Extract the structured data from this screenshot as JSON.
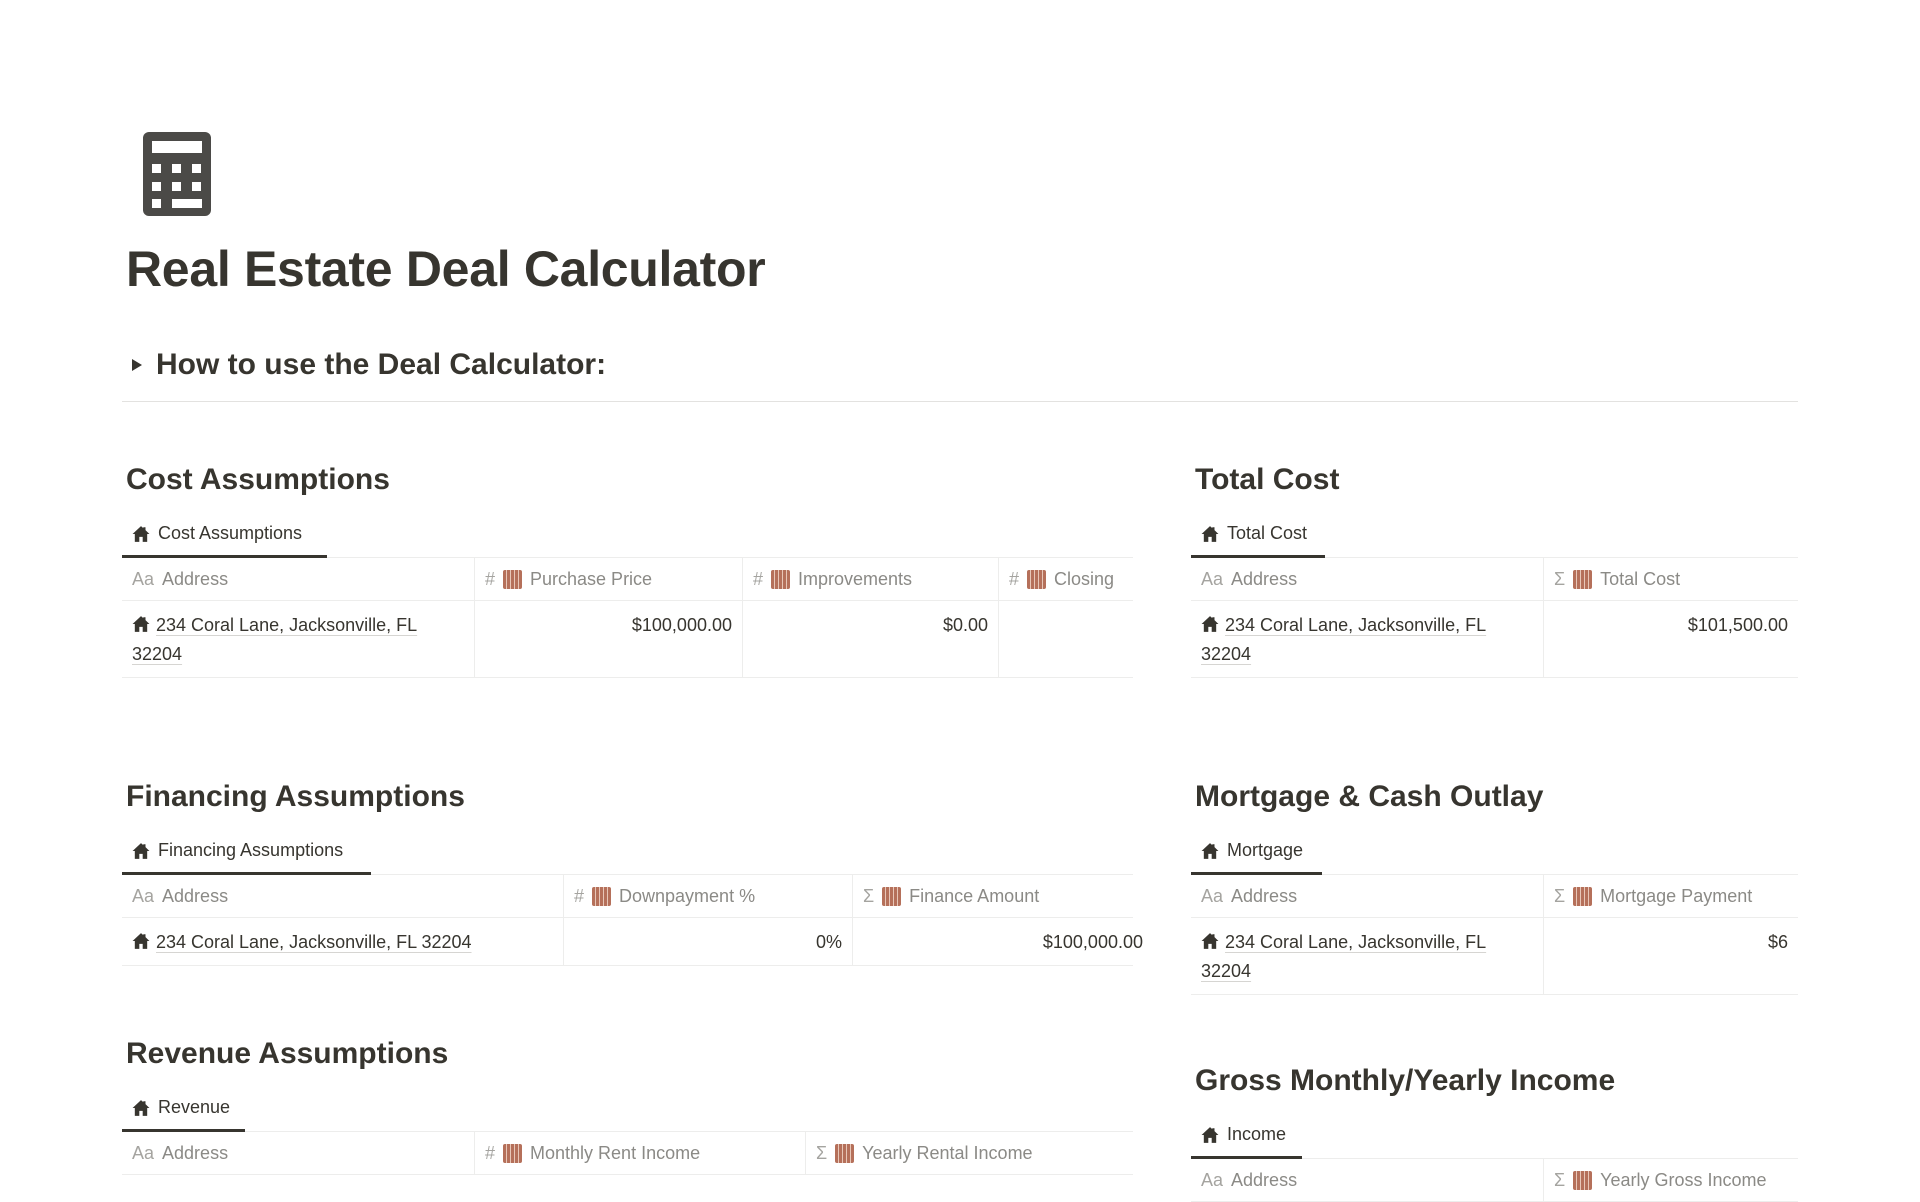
{
  "page": {
    "icon": "calculator-icon",
    "title": "Real Estate Deal Calculator",
    "toggle_label": "How to use the Deal Calculator:"
  },
  "colors": {
    "text": "#37352f",
    "header_text": "#8b8a86",
    "formula_icon": "#b5705a"
  },
  "sections": [
    {
      "id": "cost-assumptions",
      "heading": "Cost Assumptions",
      "tab": "Cost Assumptions",
      "columns": [
        {
          "type_icon": "Aa",
          "label": "Address"
        },
        {
          "type_icon": "#",
          "label": "Purchase Price"
        },
        {
          "type_icon": "#",
          "label": "Improvements"
        },
        {
          "type_icon": "#",
          "label": "Closing"
        }
      ],
      "rows": [
        [
          "234 Coral Lane, Jacksonville, FL 32204",
          "$100,000.00",
          "$0.00",
          ""
        ]
      ]
    },
    {
      "id": "total-cost",
      "heading": "Total Cost",
      "tab": "Total Cost",
      "columns": [
        {
          "type_icon": "Aa",
          "label": "Address"
        },
        {
          "type_icon": "Σ",
          "label": "Total Cost"
        }
      ],
      "rows": [
        [
          "234 Coral Lane, Jacksonville, FL 32204",
          "$101,500.00"
        ]
      ]
    },
    {
      "id": "financing-assumptions",
      "heading": "Financing Assumptions",
      "tab": "Financing Assumptions",
      "columns": [
        {
          "type_icon": "Aa",
          "label": "Address"
        },
        {
          "type_icon": "#",
          "label": "Downpayment %"
        },
        {
          "type_icon": "Σ",
          "label": "Finance Amount"
        }
      ],
      "rows": [
        [
          "234 Coral Lane, Jacksonville, FL 32204",
          "0%",
          "$100,000.00"
        ]
      ]
    },
    {
      "id": "mortgage-cash-outlay",
      "heading": "Mortgage & Cash Outlay",
      "tab": "Mortgage",
      "columns": [
        {
          "type_icon": "Aa",
          "label": "Address"
        },
        {
          "type_icon": "Σ",
          "label": "Mortgage Payment"
        }
      ],
      "rows": [
        [
          "234 Coral Lane, Jacksonville, FL 32204",
          "$6"
        ]
      ]
    },
    {
      "id": "revenue-assumptions",
      "heading": "Revenue Assumptions",
      "tab": "Revenue",
      "columns": [
        {
          "type_icon": "Aa",
          "label": "Address"
        },
        {
          "type_icon": "#",
          "label": "Monthly Rent Income"
        },
        {
          "type_icon": "Σ",
          "label": "Yearly Rental Income"
        }
      ],
      "rows": []
    },
    {
      "id": "gross-income",
      "heading": "Gross Monthly/Yearly Income",
      "tab": "Income",
      "columns": [
        {
          "type_icon": "Aa",
          "label": "Address"
        },
        {
          "type_icon": "Σ",
          "label": "Yearly Gross Income"
        }
      ],
      "rows": []
    }
  ]
}
